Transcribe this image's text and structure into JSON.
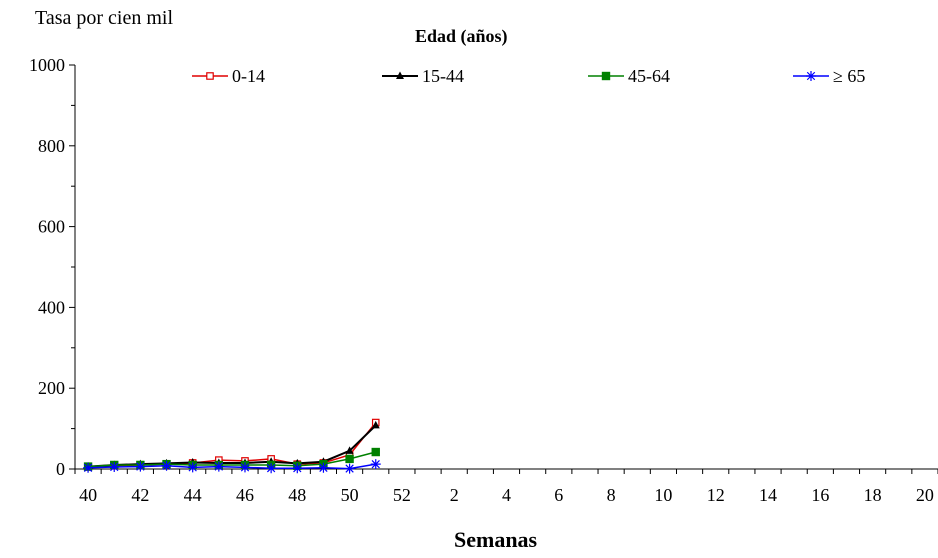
{
  "chart_data": {
    "type": "line",
    "ylabel": "Tasa por cien mil",
    "xlabel": "Semanas",
    "legend_title": "Edad (años)",
    "ylim": [
      0,
      1000
    ],
    "yticks": [
      0,
      200,
      400,
      600,
      800,
      1000
    ],
    "x_categories": [
      "40",
      "41",
      "42",
      "43",
      "44",
      "45",
      "46",
      "47",
      "48",
      "49",
      "50",
      "51",
      "52",
      "1",
      "2",
      "3",
      "4",
      "5",
      "6",
      "7",
      "8",
      "9",
      "10",
      "11",
      "12",
      "13",
      "14",
      "15",
      "16",
      "17",
      "18",
      "19",
      "20"
    ],
    "x_tick_labels": [
      "40",
      "42",
      "44",
      "46",
      "48",
      "50",
      "52",
      "2",
      "4",
      "6",
      "8",
      "10",
      "12",
      "14",
      "16",
      "18",
      "20"
    ],
    "grid": false,
    "legend_position": "top",
    "series": [
      {
        "name": "0-14",
        "color": "#e00000",
        "marker": "open-square",
        "values": [
          5,
          8,
          10,
          12,
          15,
          22,
          20,
          25,
          12,
          15,
          35,
          115
        ]
      },
      {
        "name": "15-44",
        "color": "#000000",
        "marker": "triangle",
        "values": [
          6,
          10,
          12,
          14,
          16,
          15,
          15,
          18,
          14,
          18,
          45,
          108
        ]
      },
      {
        "name": "45-64",
        "color": "#008000",
        "marker": "filled-square",
        "values": [
          6,
          10,
          10,
          12,
          10,
          10,
          10,
          10,
          8,
          12,
          25,
          42
        ]
      },
      {
        "name": "≥ 65",
        "color": "#0000ff",
        "marker": "asterisk",
        "values": [
          3,
          5,
          6,
          8,
          4,
          6,
          4,
          2,
          2,
          3,
          1,
          12
        ]
      }
    ]
  }
}
